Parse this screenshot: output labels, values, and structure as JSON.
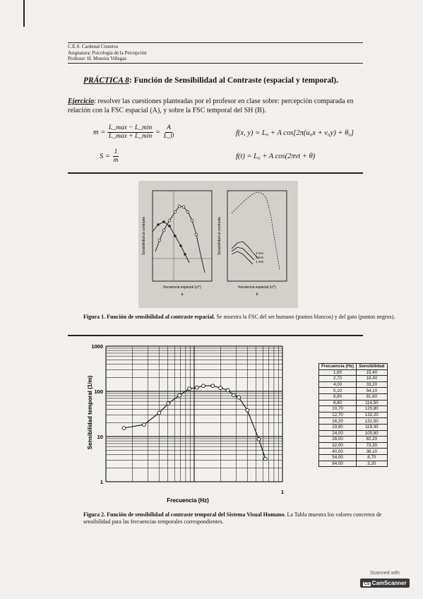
{
  "header": {
    "lines": [
      "C.E.S. Cardenal Cisneros",
      "Asignatura: Psicología de la Percepción",
      "Profesor: H. Moreira Villegas"
    ]
  },
  "title": {
    "label": "PRÁCTICA 8",
    "text": ": Función de Sensibilidad al Contraste (espacial y temporal)."
  },
  "exercise": {
    "label": "Ejercicio",
    "text": ": resolver las cuestiones planteadas por el profesor en clase sobre: percepción comparada en relación con la FSC espacial (A), y sobre la FSC temporal del SH (B)."
  },
  "formulas": {
    "m_lhs": "m =",
    "m_num": "L_max − L_min",
    "m_den": "L_max + L_min",
    "m_eq": "=",
    "m_num2": "A",
    "m_den2": "L_0",
    "s_lhs": "S =",
    "s_num": "1",
    "s_den": "m",
    "f_spatial": "f(x, y) = L₀ + A cos[2π(u₀x + v₀y) + θ₀]",
    "f_temporal": "f(t) = L₀ + A cos(2πνt + θ)"
  },
  "figure1": {
    "left_ylabel": "Sensibilidad al contraste",
    "right_ylabel": "Sensibilidad al contraste",
    "left_xlabel": "frecuencia espacial (c/°)",
    "right_xlabel": "frecuencia espacial (c/°)",
    "left_panel": "a",
    "right_panel": "b",
    "left_ticks_y": [
      "1000",
      "300",
      "100",
      "30",
      "10",
      "3"
    ],
    "right_ticks_y": [
      "100",
      "30",
      "10",
      "3"
    ],
    "curve_labels": [
      "3 mm",
      "2 mm",
      "1 mm"
    ],
    "caption_bold": "Figura 1. Función de sensibilidad al contraste espacial.",
    "caption_rest": " Se muestra la FSC del ser humano (puntos blancos) y del gato (puntos negros)."
  },
  "chart_data": {
    "type": "line",
    "title": "",
    "xlabel": "Frecuencia (Hz)",
    "ylabel": "Sensibilidad temporal (1/m)",
    "yscale": "log",
    "xscale": "log",
    "ylim": [
      1,
      1000
    ],
    "xlim": [
      1,
      100
    ],
    "y_ticks": [
      "1000",
      "100",
      "10",
      "1"
    ],
    "x_ticks": [
      "1"
    ],
    "grid": true,
    "series": [
      {
        "x": [
          1.6,
          2.7,
          4.0,
          5.1,
          6.8,
          8.8,
          10.7,
          12.7,
          16.2,
          19.8,
          24.0,
          28.0,
          32.0,
          40.0,
          54.0,
          64.0
        ],
        "y": [
          15.4,
          18.4,
          33.2,
          54.1,
          81.6,
          114.5,
          120.8,
          132.2,
          132.5,
          119.3,
          105.8,
          82.2,
          73.3,
          38.1,
          8.7,
          3.2
        ]
      }
    ]
  },
  "table": {
    "headers": [
      "Frecuencia (Hz)",
      "Sensibilidad"
    ],
    "rows": [
      [
        "1,60",
        "15,40"
      ],
      [
        "2,70",
        "18,40"
      ],
      [
        "4,00",
        "33,20"
      ],
      [
        "5,10",
        "54,10"
      ],
      [
        "6,80",
        "81,60"
      ],
      [
        "8,80",
        "114,50"
      ],
      [
        "10,70",
        "120,80"
      ],
      [
        "12,70",
        "132,20"
      ],
      [
        "16,20",
        "132,50"
      ],
      [
        "19,80",
        "119,30"
      ],
      [
        "24,00",
        "105,80"
      ],
      [
        "28,00",
        "82,20"
      ],
      [
        "32,00",
        "73,30"
      ],
      [
        "40,00",
        "38,10"
      ],
      [
        "54,00",
        "8,70"
      ],
      [
        "64,00",
        "3,20"
      ]
    ]
  },
  "figure2": {
    "caption_bold": "Figura 2. Función de sensibilidad al contraste temporal del Sistema Visual Humano.",
    "caption_rest": " La Tabla muestra los valores concretos de sensibilidad para las frecuencias temporales correspondientes."
  },
  "watermark": {
    "scanned_with": "Scanned with",
    "brand": "CamScanner",
    "brand_icon": "CS"
  }
}
